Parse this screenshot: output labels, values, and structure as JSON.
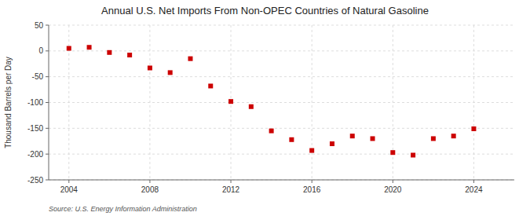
{
  "chart_data": {
    "type": "scatter",
    "title": "Annual U.S. Net Imports From Non-OPEC Countries of Natural Gasoline",
    "ylabel": "Thousand Barrels per Day",
    "source": "Source: U.S. Energy Information Administration",
    "x": [
      2004,
      2005,
      2006,
      2007,
      2008,
      2009,
      2010,
      2011,
      2012,
      2013,
      2014,
      2015,
      2016,
      2017,
      2018,
      2019,
      2020,
      2021,
      2022,
      2023,
      2024
    ],
    "values": [
      5,
      7,
      -3,
      -8,
      -33,
      -42,
      -15,
      -68,
      -98,
      -108,
      -155,
      -172,
      -193,
      -180,
      -165,
      -170,
      -197,
      -202,
      -170,
      -165,
      -151
    ],
    "color": "#cc0000",
    "marker": "square",
    "xlim": [
      2003,
      2026
    ],
    "xticks": [
      2004,
      2008,
      2012,
      2016,
      2020,
      2024
    ],
    "ylim": [
      -250,
      50
    ],
    "yticks": [
      -250,
      -200,
      -150,
      -100,
      -50,
      0,
      50
    ],
    "grid": true
  }
}
